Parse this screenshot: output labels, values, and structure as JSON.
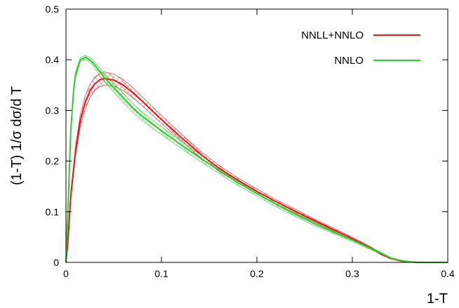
{
  "chart_data": {
    "type": "line",
    "title": "",
    "xlabel": "1-T",
    "ylabel": "(1-T) 1/σ dσ/d T",
    "xlim": [
      0,
      0.4
    ],
    "ylim": [
      0,
      0.5
    ],
    "xticks": [
      0,
      0.1,
      0.2,
      0.3,
      0.4
    ],
    "xtick_labels": [
      "0",
      "0.1",
      "0.2",
      "0.3",
      "0.4"
    ],
    "yticks": [
      0,
      0.1,
      0.2,
      0.3,
      0.4,
      0.5
    ],
    "ytick_labels": [
      "0",
      "0.1",
      "0.2",
      "0.3",
      "0.4",
      "0.5"
    ],
    "grid": false,
    "legend_position": "top-right",
    "series": [
      {
        "name": "NNLL+NNLO",
        "color": "#e31a1c",
        "x": [
          0.0,
          0.002,
          0.005,
          0.01,
          0.015,
          0.02,
          0.025,
          0.03,
          0.035,
          0.04,
          0.05,
          0.06,
          0.07,
          0.08,
          0.1,
          0.12,
          0.14,
          0.16,
          0.18,
          0.2,
          0.22,
          0.24,
          0.26,
          0.28,
          0.3,
          0.32,
          0.33,
          0.34,
          0.35,
          0.36,
          0.37,
          0.38,
          0.39,
          0.4
        ],
        "y": [
          0.0,
          0.04,
          0.13,
          0.22,
          0.28,
          0.315,
          0.338,
          0.352,
          0.36,
          0.363,
          0.36,
          0.35,
          0.335,
          0.318,
          0.282,
          0.248,
          0.215,
          0.186,
          0.162,
          0.14,
          0.12,
          0.101,
          0.083,
          0.065,
          0.047,
          0.028,
          0.017,
          0.008,
          0.003,
          0.001,
          0.0,
          0.0,
          0.0,
          0.0
        ],
        "band_halfwidth": [
          0.0,
          0.004,
          0.008,
          0.01,
          0.012,
          0.013,
          0.013,
          0.013,
          0.013,
          0.013,
          0.012,
          0.011,
          0.01,
          0.009,
          0.008,
          0.007,
          0.006,
          0.006,
          0.005,
          0.005,
          0.004,
          0.004,
          0.003,
          0.003,
          0.003,
          0.002,
          0.002,
          0.001,
          0.0,
          0.0,
          0.0,
          0.0,
          0.0,
          0.0
        ]
      },
      {
        "name": "NNLO",
        "color": "#2ecc2e",
        "x": [
          0.0,
          0.002,
          0.005,
          0.008,
          0.01,
          0.015,
          0.02,
          0.025,
          0.03,
          0.04,
          0.05,
          0.06,
          0.07,
          0.08,
          0.1,
          0.12,
          0.14,
          0.16,
          0.18,
          0.2,
          0.22,
          0.24,
          0.26,
          0.28,
          0.3,
          0.32,
          0.33,
          0.34,
          0.35,
          0.36,
          0.37,
          0.38,
          0.39,
          0.4
        ],
        "y": [
          0.0,
          0.1,
          0.26,
          0.34,
          0.37,
          0.4,
          0.405,
          0.4,
          0.39,
          0.365,
          0.345,
          0.325,
          0.305,
          0.288,
          0.26,
          0.233,
          0.207,
          0.182,
          0.158,
          0.136,
          0.115,
          0.095,
          0.077,
          0.06,
          0.044,
          0.027,
          0.018,
          0.009,
          0.004,
          0.001,
          0.0,
          0.0,
          0.0,
          0.0
        ],
        "band_halfwidth": [
          0.0,
          0.005,
          0.007,
          0.007,
          0.006,
          0.004,
          0.004,
          0.005,
          0.006,
          0.008,
          0.009,
          0.009,
          0.009,
          0.009,
          0.008,
          0.007,
          0.007,
          0.006,
          0.006,
          0.005,
          0.005,
          0.004,
          0.004,
          0.003,
          0.003,
          0.002,
          0.002,
          0.001,
          0.0,
          0.0,
          0.0,
          0.0,
          0.0,
          0.0
        ]
      }
    ]
  }
}
